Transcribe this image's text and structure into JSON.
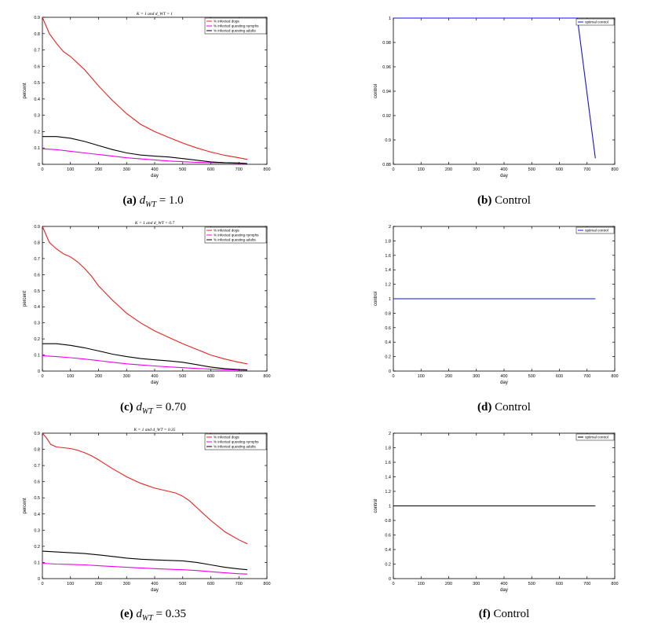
{
  "chart_data": [
    {
      "id": "a",
      "type": "line",
      "title": "K = 1 and d_WT = 1",
      "xlabel": "day",
      "ylabel": "percent",
      "xlim": [
        0,
        800
      ],
      "ylim": [
        0,
        0.9
      ],
      "xticks": [
        "0",
        "100",
        "200",
        "300",
        "400",
        "500",
        "600",
        "700",
        "800"
      ],
      "yticks": [
        "0",
        "0.1",
        "0.2",
        "0.3",
        "0.4",
        "0.5",
        "0.6",
        "0.7",
        "0.8",
        "0.9"
      ],
      "legend_position": "top-right",
      "series": [
        {
          "name": "% infected dogs",
          "color": "#e8211d",
          "x": [
            0,
            25,
            50,
            75,
            100,
            125,
            150,
            175,
            200,
            250,
            300,
            350,
            400,
            450,
            500,
            550,
            600,
            650,
            700,
            730
          ],
          "y": [
            0.9,
            0.8,
            0.74,
            0.69,
            0.66,
            0.62,
            0.58,
            0.53,
            0.48,
            0.39,
            0.31,
            0.245,
            0.2,
            0.165,
            0.13,
            0.1,
            0.075,
            0.055,
            0.04,
            0.03
          ]
        },
        {
          "name": "% infected questing nymphs",
          "color": "#ee00ee",
          "x": [
            0,
            50,
            100,
            150,
            200,
            250,
            300,
            350,
            400,
            450,
            500,
            550,
            600,
            650,
            700,
            730
          ],
          "y": [
            0.095,
            0.09,
            0.08,
            0.07,
            0.06,
            0.05,
            0.04,
            0.033,
            0.027,
            0.02,
            0.016,
            0.012,
            0.01,
            0.008,
            0.006,
            0.005
          ]
        },
        {
          "name": "% infected questing adults",
          "color": "#000000",
          "x": [
            0,
            50,
            100,
            150,
            200,
            250,
            300,
            350,
            400,
            450,
            500,
            550,
            600,
            650,
            700,
            730
          ],
          "y": [
            0.17,
            0.17,
            0.16,
            0.14,
            0.115,
            0.09,
            0.07,
            0.057,
            0.05,
            0.045,
            0.035,
            0.025,
            0.015,
            0.01,
            0.008,
            0.005
          ]
        }
      ]
    },
    {
      "id": "b",
      "type": "line",
      "xlabel": "day",
      "ylabel": "control",
      "xlim": [
        0,
        800
      ],
      "ylim": [
        0.88,
        1
      ],
      "xticks": [
        "0",
        "100",
        "200",
        "300",
        "400",
        "500",
        "600",
        "700",
        "800"
      ],
      "yticks": [
        "0.88",
        "0.9",
        "0.92",
        "0.94",
        "0.96",
        "0.98",
        "1"
      ],
      "legend_position": "top-right",
      "series": [
        {
          "name": "optimal control",
          "color": "#1212e0",
          "x": [
            0,
            665,
            730
          ],
          "y": [
            1,
            1,
            0.885
          ]
        }
      ]
    },
    {
      "id": "c",
      "type": "line",
      "title": "K = 1 and d_WT = 0.7",
      "xlabel": "day",
      "ylabel": "percent",
      "xlim": [
        0,
        800
      ],
      "ylim": [
        0,
        0.9
      ],
      "xticks": [
        "0",
        "100",
        "200",
        "300",
        "400",
        "500",
        "600",
        "700",
        "800"
      ],
      "yticks": [
        "0",
        "0.1",
        "0.2",
        "0.3",
        "0.4",
        "0.5",
        "0.6",
        "0.7",
        "0.8",
        "0.9"
      ],
      "legend_position": "top-right",
      "series": [
        {
          "name": "% infected dogs",
          "color": "#e8211d",
          "x": [
            0,
            25,
            50,
            75,
            100,
            125,
            150,
            175,
            200,
            250,
            300,
            350,
            400,
            450,
            500,
            550,
            600,
            650,
            700,
            730
          ],
          "y": [
            0.9,
            0.8,
            0.76,
            0.73,
            0.71,
            0.68,
            0.64,
            0.59,
            0.53,
            0.44,
            0.36,
            0.3,
            0.25,
            0.21,
            0.17,
            0.135,
            0.1,
            0.075,
            0.055,
            0.045
          ]
        },
        {
          "name": "% infected questing nymphs",
          "color": "#ee00ee",
          "x": [
            0,
            50,
            100,
            150,
            200,
            250,
            300,
            350,
            400,
            450,
            500,
            550,
            600,
            650,
            700,
            730
          ],
          "y": [
            0.095,
            0.09,
            0.083,
            0.075,
            0.065,
            0.055,
            0.045,
            0.038,
            0.032,
            0.026,
            0.021,
            0.016,
            0.012,
            0.009,
            0.007,
            0.006
          ]
        },
        {
          "name": "% infected questing adults",
          "color": "#000000",
          "x": [
            0,
            50,
            100,
            150,
            200,
            250,
            300,
            350,
            400,
            450,
            500,
            550,
            600,
            650,
            700,
            730
          ],
          "y": [
            0.17,
            0.17,
            0.16,
            0.145,
            0.125,
            0.105,
            0.09,
            0.078,
            0.07,
            0.063,
            0.055,
            0.04,
            0.025,
            0.015,
            0.01,
            0.008
          ]
        }
      ]
    },
    {
      "id": "d",
      "type": "line",
      "xlabel": "day",
      "ylabel": "control",
      "xlim": [
        0,
        800
      ],
      "ylim": [
        0,
        2
      ],
      "xticks": [
        "0",
        "100",
        "200",
        "300",
        "400",
        "500",
        "600",
        "700",
        "800"
      ],
      "yticks": [
        "0",
        "0.2",
        "0.4",
        "0.6",
        "0.8",
        "1",
        "1.2",
        "1.4",
        "1.6",
        "1.8",
        "2"
      ],
      "legend_position": "top-right",
      "series": [
        {
          "name": "optimal control",
          "color": "#1212e0",
          "x": [
            0,
            730
          ],
          "y": [
            1,
            1
          ]
        }
      ]
    },
    {
      "id": "e",
      "type": "line",
      "title": "K = 1 and d_WT = 0.35",
      "xlabel": "day",
      "ylabel": "percent",
      "xlim": [
        0,
        800
      ],
      "ylim": [
        0,
        0.9
      ],
      "xticks": [
        "0",
        "100",
        "200",
        "300",
        "400",
        "500",
        "600",
        "700",
        "800"
      ],
      "yticks": [
        "0",
        "0.1",
        "0.2",
        "0.3",
        "0.4",
        "0.5",
        "0.6",
        "0.7",
        "0.8",
        "0.9"
      ],
      "legend_position": "top-right",
      "series": [
        {
          "name": "% infected dogs",
          "color": "#e8211d",
          "x": [
            0,
            15,
            30,
            50,
            75,
            100,
            125,
            150,
            175,
            200,
            250,
            300,
            350,
            400,
            450,
            475,
            500,
            525,
            550,
            600,
            650,
            700,
            730
          ],
          "y": [
            0.9,
            0.87,
            0.83,
            0.815,
            0.81,
            0.805,
            0.795,
            0.78,
            0.76,
            0.735,
            0.68,
            0.63,
            0.59,
            0.56,
            0.54,
            0.53,
            0.51,
            0.48,
            0.44,
            0.36,
            0.29,
            0.24,
            0.215
          ]
        },
        {
          "name": "% infected questing nymphs",
          "color": "#ee00ee",
          "x": [
            0,
            50,
            100,
            150,
            200,
            250,
            300,
            350,
            400,
            450,
            500,
            550,
            600,
            650,
            700,
            730
          ],
          "y": [
            0.095,
            0.09,
            0.088,
            0.085,
            0.08,
            0.075,
            0.07,
            0.066,
            0.062,
            0.058,
            0.055,
            0.05,
            0.043,
            0.036,
            0.03,
            0.028
          ]
        },
        {
          "name": "% infected questing adults",
          "color": "#000000",
          "x": [
            0,
            50,
            100,
            150,
            200,
            250,
            300,
            350,
            400,
            450,
            500,
            550,
            600,
            650,
            700,
            730
          ],
          "y": [
            0.17,
            0.165,
            0.16,
            0.155,
            0.147,
            0.137,
            0.127,
            0.12,
            0.116,
            0.113,
            0.11,
            0.1,
            0.085,
            0.07,
            0.06,
            0.055
          ]
        }
      ]
    },
    {
      "id": "f",
      "type": "line",
      "xlabel": "day",
      "ylabel": "control",
      "xlim": [
        0,
        800
      ],
      "ylim": [
        0,
        2
      ],
      "xticks": [
        "0",
        "100",
        "200",
        "300",
        "400",
        "500",
        "600",
        "700",
        "800"
      ],
      "yticks": [
        "0",
        "0.2",
        "0.4",
        "0.6",
        "0.8",
        "1",
        "1.2",
        "1.4",
        "1.6",
        "1.8",
        "2"
      ],
      "legend_position": "top-right",
      "series": [
        {
          "name": "optimal control",
          "color": "#000000",
          "x": [
            0,
            730
          ],
          "y": [
            1,
            1
          ]
        }
      ]
    }
  ],
  "captions": {
    "a": {
      "label": "(a)",
      "symbol": "d",
      "sub": "WT",
      "text": "= 1.0"
    },
    "b": {
      "label": "(b)",
      "text": "Control"
    },
    "c": {
      "label": "(c)",
      "symbol": "d",
      "sub": "WT",
      "text": "= 0.70"
    },
    "d": {
      "label": "(d)",
      "text": "Control"
    },
    "e": {
      "label": "(e)",
      "symbol": "d",
      "sub": "WT",
      "text": "= 0.35"
    },
    "f": {
      "label": "(f)",
      "text": "Control"
    }
  }
}
